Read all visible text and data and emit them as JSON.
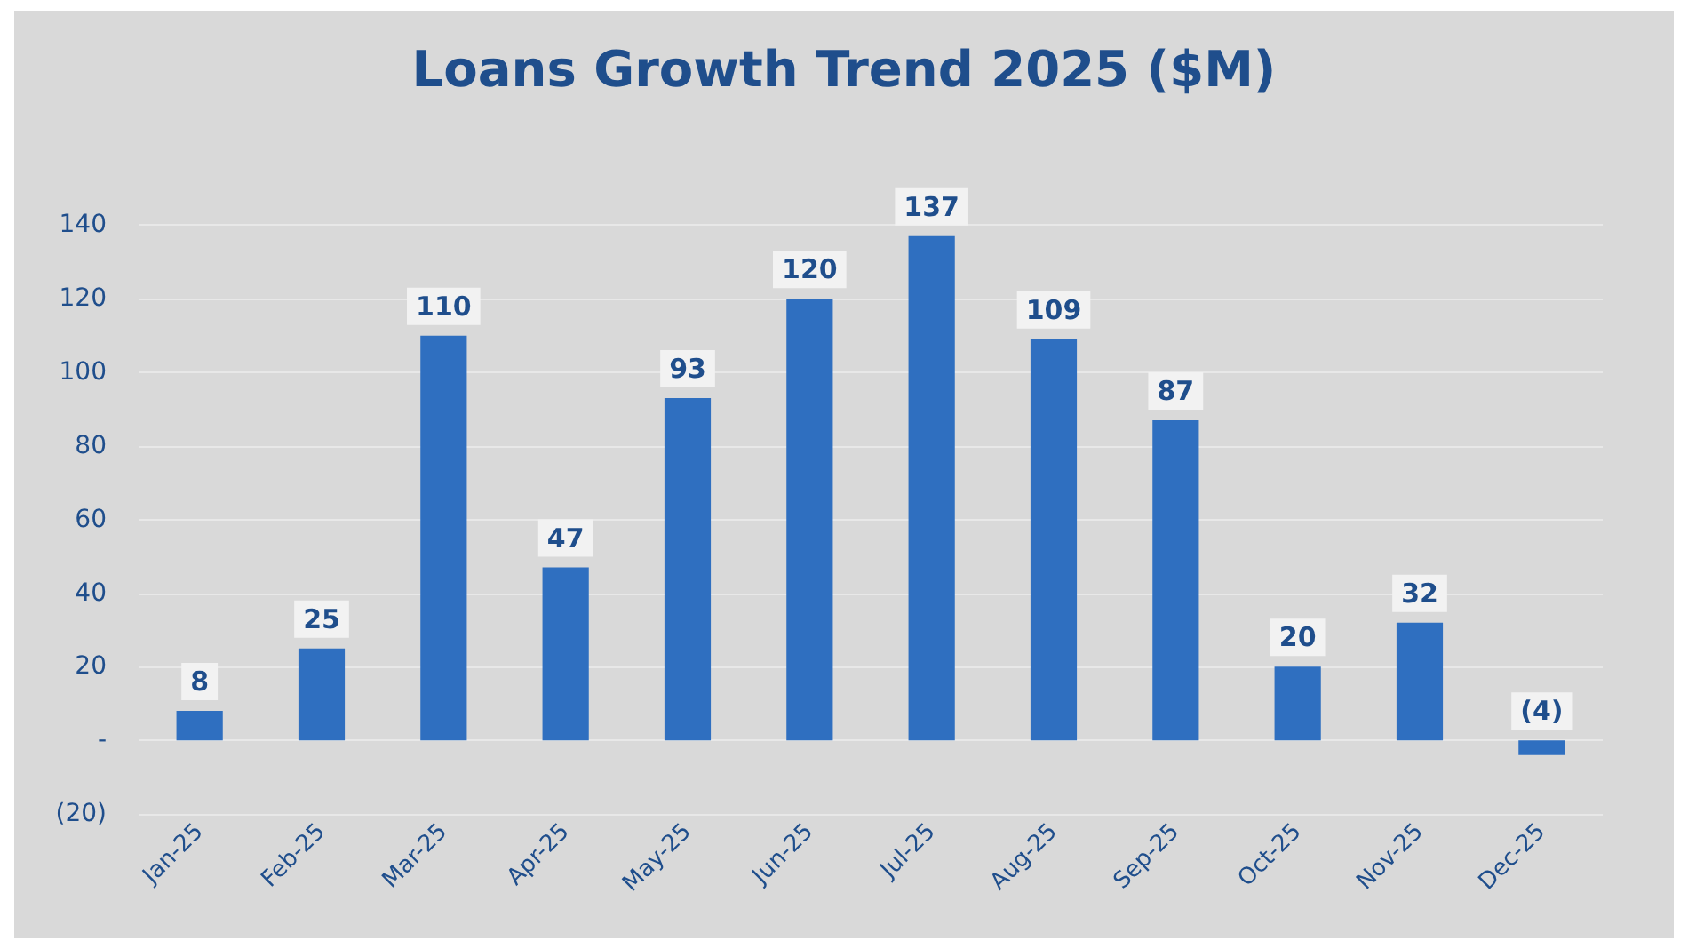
{
  "chart_data": {
    "type": "bar",
    "title": "Loans Growth Trend 2025 ($M)",
    "categories": [
      "Jan-25",
      "Feb-25",
      "Mar-25",
      "Apr-25",
      "May-25",
      "Jun-25",
      "Jul-25",
      "Aug-25",
      "Sep-25",
      "Oct-25",
      "Nov-25",
      "Dec-25"
    ],
    "values": [
      8,
      25,
      110,
      47,
      93,
      120,
      137,
      109,
      87,
      20,
      32,
      -4
    ],
    "value_labels": [
      "8",
      "25",
      "110",
      "47",
      "93",
      "120",
      "137",
      "109",
      "87",
      "20",
      "32",
      "(4)"
    ],
    "color": "#2f6fc0",
    "ylim": [
      -20,
      150
    ],
    "yticks": [
      {
        "value": -20,
        "label": "(20)"
      },
      {
        "value": 0,
        "label": "-"
      },
      20,
      40,
      60,
      80,
      100,
      120,
      140
    ],
    "grid": "y"
  }
}
